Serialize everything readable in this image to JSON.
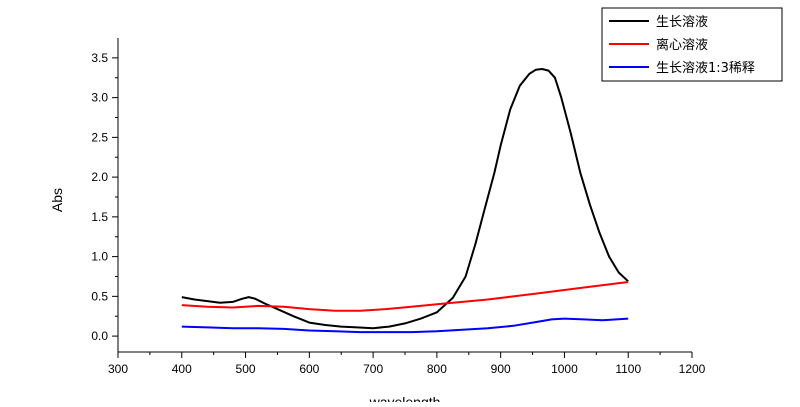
{
  "chart_data": {
    "type": "line",
    "title": "",
    "xlabel": "wavelength",
    "ylabel": "Abs",
    "xlim": [
      300,
      1200
    ],
    "ylim": [
      -0.2,
      3.75
    ],
    "xticks": [
      300,
      400,
      500,
      600,
      700,
      800,
      900,
      1000,
      1100,
      1200
    ],
    "yticks": [
      0.0,
      0.5,
      1.0,
      1.5,
      2.0,
      2.5,
      3.0,
      3.5
    ],
    "ytick_labels": [
      "0.0",
      "0.5",
      "1.0",
      "1.5",
      "2.0",
      "2.5",
      "3.0",
      "3.5"
    ],
    "grid": false,
    "legend_position": "top-right",
    "series": [
      {
        "name": "生长溶液",
        "color": "#000000",
        "x": [
          400,
          420,
          440,
          460,
          480,
          495,
          505,
          515,
          530,
          550,
          575,
          600,
          625,
          650,
          675,
          700,
          725,
          750,
          775,
          800,
          825,
          845,
          860,
          875,
          890,
          900,
          915,
          930,
          945,
          955,
          965,
          975,
          985,
          995,
          1010,
          1025,
          1040,
          1055,
          1070,
          1085,
          1100
        ],
        "y": [
          0.49,
          0.46,
          0.44,
          0.42,
          0.43,
          0.47,
          0.49,
          0.47,
          0.41,
          0.34,
          0.25,
          0.17,
          0.14,
          0.12,
          0.11,
          0.1,
          0.12,
          0.16,
          0.22,
          0.3,
          0.48,
          0.75,
          1.15,
          1.6,
          2.05,
          2.4,
          2.85,
          3.15,
          3.3,
          3.35,
          3.36,
          3.34,
          3.25,
          3.0,
          2.55,
          2.05,
          1.65,
          1.3,
          1.0,
          0.8,
          0.69
        ]
      },
      {
        "name": "离心溶液",
        "color": "#ff0000",
        "x": [
          400,
          440,
          480,
          520,
          560,
          600,
          640,
          680,
          720,
          760,
          800,
          840,
          880,
          920,
          960,
          1000,
          1040,
          1070,
          1100
        ],
        "y": [
          0.39,
          0.37,
          0.36,
          0.38,
          0.37,
          0.34,
          0.32,
          0.32,
          0.34,
          0.37,
          0.4,
          0.43,
          0.46,
          0.5,
          0.54,
          0.58,
          0.62,
          0.65,
          0.68
        ]
      },
      {
        "name": "生长溶液1:3稀释",
        "color": "#0000ff",
        "x": [
          400,
          440,
          480,
          520,
          560,
          600,
          640,
          680,
          720,
          760,
          800,
          840,
          880,
          920,
          950,
          980,
          1000,
          1030,
          1060,
          1100
        ],
        "y": [
          0.12,
          0.11,
          0.1,
          0.1,
          0.09,
          0.07,
          0.06,
          0.05,
          0.05,
          0.05,
          0.06,
          0.08,
          0.1,
          0.13,
          0.17,
          0.21,
          0.22,
          0.21,
          0.2,
          0.22
        ]
      }
    ]
  }
}
